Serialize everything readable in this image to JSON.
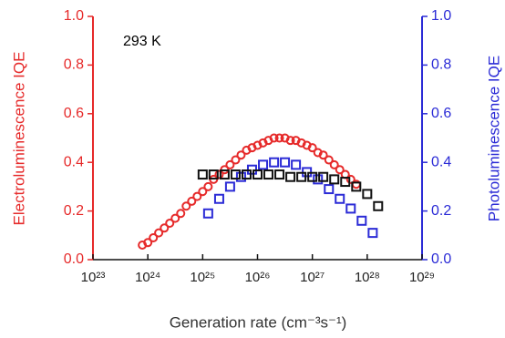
{
  "chart_data": {
    "type": "scatter",
    "annotation": "293 K",
    "xlabel": "Generation rate (cm⁻³s⁻¹)",
    "ylabel": "Electroluminescence IQE",
    "y2label": "Photoluminescence IQE",
    "xscale": "log",
    "xlim": [
      1e+23,
      1e+29
    ],
    "xticks": [
      {
        "value": 1e+23,
        "label": "10²³"
      },
      {
        "value": 1e+24,
        "label": "10²⁴"
      },
      {
        "value": 1e+25,
        "label": "10²⁵"
      },
      {
        "value": 1e+26,
        "label": "10²⁶"
      },
      {
        "value": 1e+27,
        "label": "10²⁷"
      },
      {
        "value": 1e+28,
        "label": "10²⁸"
      },
      {
        "value": 1e+29,
        "label": "10²⁹"
      }
    ],
    "ylim": [
      0,
      1
    ],
    "yticks": [
      {
        "value": 0,
        "label": "0.0"
      },
      0.2,
      0.4,
      0.6,
      0.8,
      {
        "value": 1,
        "label": "1.0"
      }
    ],
    "y2lim": [
      0,
      1
    ],
    "y2ticks": [
      {
        "value": 0,
        "label": "0.0"
      },
      0.2,
      0.4,
      0.6,
      0.8,
      {
        "value": 1,
        "label": "1.0"
      }
    ],
    "ycolor": "#e62a2a",
    "y2color": "#2b2bd6",
    "series": [
      {
        "color": "#e62a2a",
        "marker": "circle",
        "x": [
          7.94e+23,
          1e+24,
          1.26e+24,
          1.58e+24,
          2e+24,
          2.51e+24,
          3.16e+24,
          3.98e+24,
          5.01e+24,
          6.31e+24,
          7.94e+24,
          1e+25,
          1.26e+25,
          1.58e+25,
          2e+25,
          2.51e+25,
          3.16e+25,
          3.98e+25,
          5.01e+25,
          6.31e+25,
          7.94e+25,
          1e+26,
          1.26e+26,
          1.58e+26,
          2e+26,
          2.51e+26,
          3.16e+26,
          3.98e+26,
          5.01e+26,
          6.31e+26,
          7.94e+26,
          1e+27,
          1.26e+27,
          1.58e+27,
          2e+27,
          2.51e+27,
          3.16e+27,
          3.98e+27,
          5.01e+27,
          6.31e+27
        ],
        "values": [
          0.06,
          0.07,
          0.09,
          0.11,
          0.13,
          0.15,
          0.17,
          0.19,
          0.22,
          0.24,
          0.26,
          0.28,
          0.3,
          0.33,
          0.35,
          0.37,
          0.39,
          0.41,
          0.43,
          0.45,
          0.46,
          0.47,
          0.48,
          0.49,
          0.5,
          0.5,
          0.5,
          0.49,
          0.49,
          0.48,
          0.47,
          0.46,
          0.44,
          0.43,
          0.41,
          0.39,
          0.37,
          0.35,
          0.33,
          0.31
        ]
      },
      {
        "color": "#2b2bd6",
        "marker": "square",
        "axis": "y2",
        "x": [
          1.26e+25,
          2e+25,
          3.16e+25,
          5.01e+25,
          7.94e+25,
          1.26e+26,
          2e+26,
          3.16e+26,
          5.01e+26,
          7.94e+26,
          1.26e+27,
          2e+27,
          3.16e+27,
          5.01e+27,
          7.94e+27,
          1.26e+28
        ],
        "values": [
          0.19,
          0.25,
          0.3,
          0.34,
          0.37,
          0.39,
          0.4,
          0.4,
          0.39,
          0.36,
          0.33,
          0.29,
          0.25,
          0.21,
          0.16,
          0.11
        ]
      },
      {
        "color": "#111111",
        "marker": "square",
        "x": [
          1e+25,
          1.58e+25,
          2.51e+25,
          3.98e+25,
          6.31e+25,
          1e+26,
          1.58e+26,
          2.51e+26,
          3.98e+26,
          6.31e+26,
          1e+27,
          1.58e+27,
          2.51e+27,
          3.98e+27,
          6.31e+27,
          1e+28,
          1.58e+28
        ],
        "values": [
          0.35,
          0.35,
          0.35,
          0.35,
          0.35,
          0.35,
          0.35,
          0.35,
          0.34,
          0.34,
          0.34,
          0.34,
          0.33,
          0.32,
          0.3,
          0.27,
          0.22
        ]
      }
    ]
  }
}
